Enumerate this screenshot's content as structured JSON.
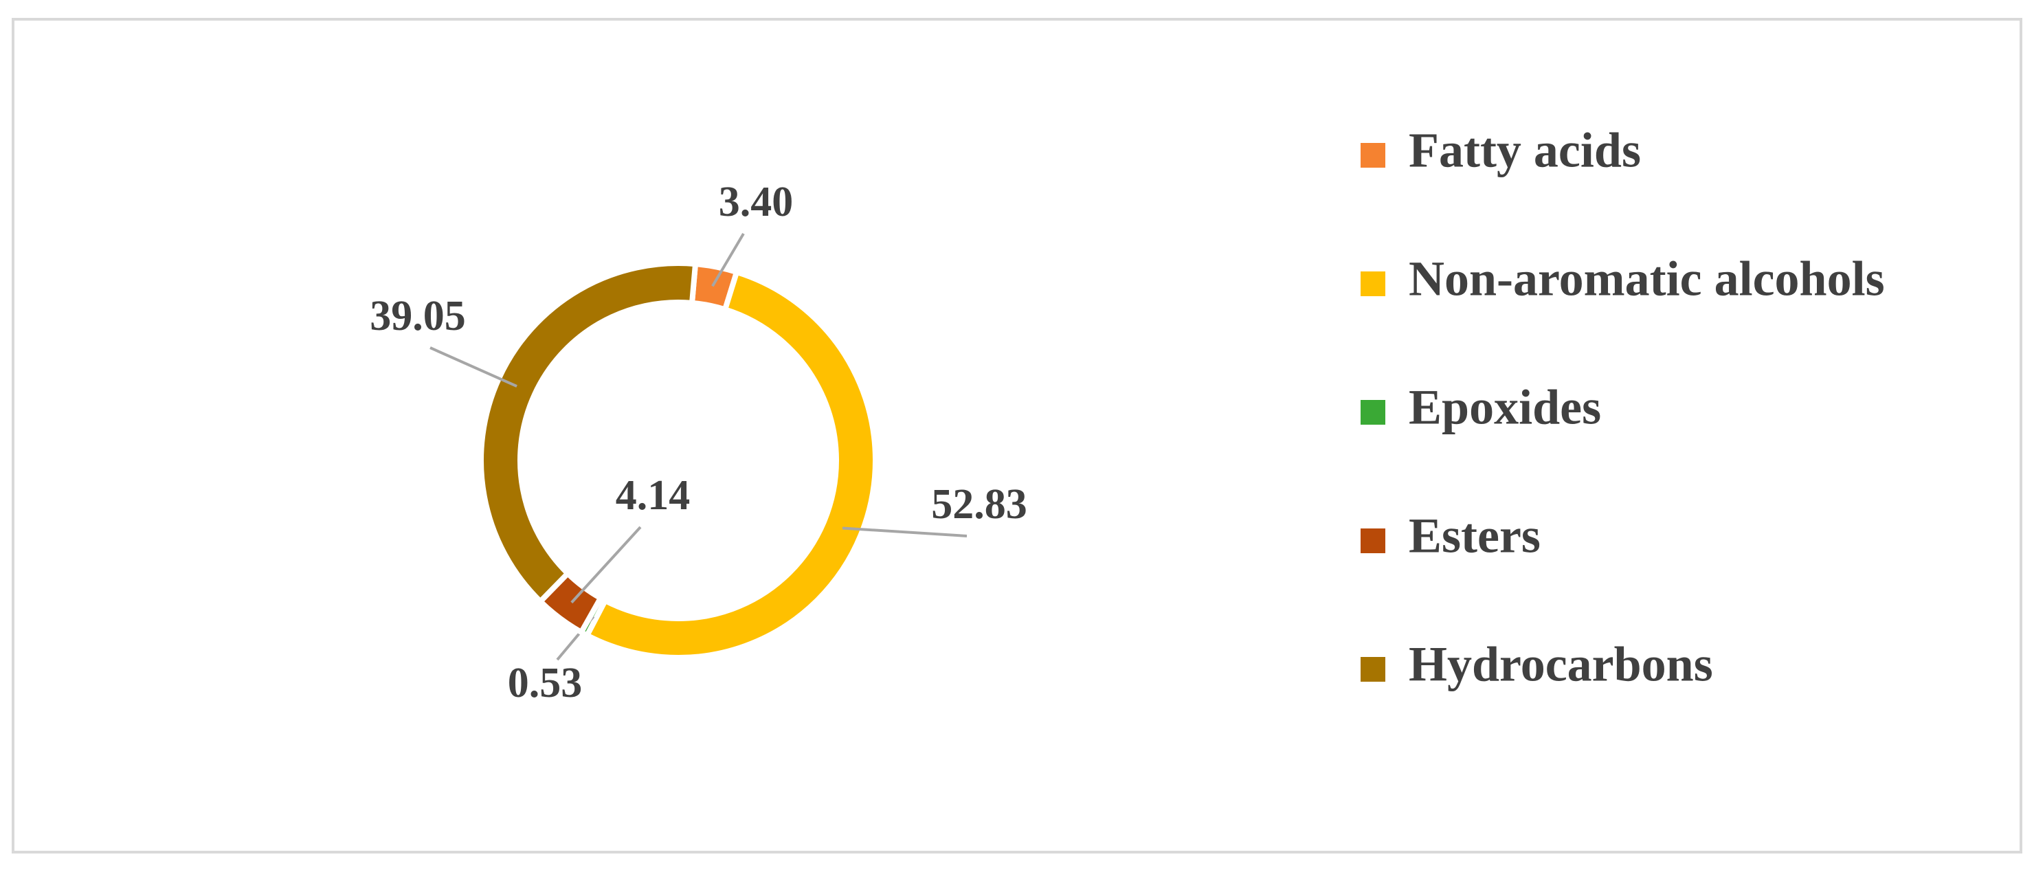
{
  "chart_data": {
    "type": "donut",
    "categories": [
      "Fatty acids",
      "Non-aromatic alcohols",
      "Epoxides",
      "Esters",
      "Hydrocarbons"
    ],
    "values": [
      3.4,
      52.83,
      0.53,
      4.14,
      39.05
    ],
    "value_labels": [
      "3.40",
      "52.83",
      "0.53",
      "4.14",
      "39.05"
    ],
    "colors": [
      "#f58230",
      "#ffc000",
      "#3aa935",
      "#b84a08",
      "#a67400"
    ],
    "legend": "right"
  }
}
